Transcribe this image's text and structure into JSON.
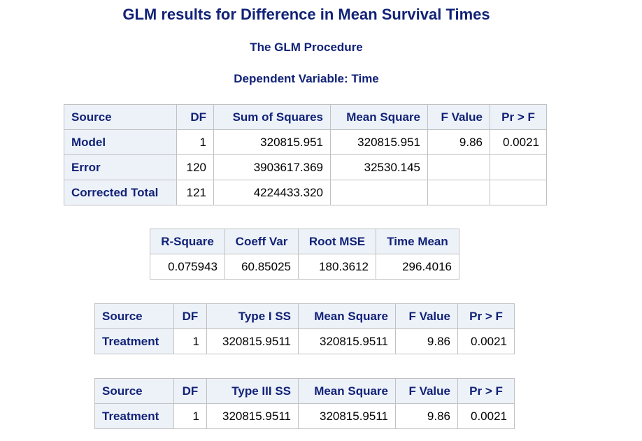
{
  "title": "GLM results for Difference in Mean Survival Times",
  "procedure": "The GLM Procedure",
  "dependent": "Dependent Variable: Time",
  "anova": {
    "headers": [
      "Source",
      "DF",
      "Sum of Squares",
      "Mean Square",
      "F Value",
      "Pr > F"
    ],
    "rows": [
      {
        "source": "Model",
        "df": "1",
        "ss": "320815.951",
        "ms": "320815.951",
        "f": "9.86",
        "p": "0.0021"
      },
      {
        "source": "Error",
        "df": "120",
        "ss": "3903617.369",
        "ms": "32530.145",
        "f": "",
        "p": ""
      },
      {
        "source": "Corrected Total",
        "df": "121",
        "ss": "4224433.320",
        "ms": "",
        "f": "",
        "p": ""
      }
    ]
  },
  "fit": {
    "headers": [
      "R-Square",
      "Coeff Var",
      "Root MSE",
      "Time Mean"
    ],
    "values": [
      "0.075943",
      "60.85025",
      "180.3612",
      "296.4016"
    ]
  },
  "type1": {
    "headers": [
      "Source",
      "DF",
      "Type I SS",
      "Mean Square",
      "F Value",
      "Pr > F"
    ],
    "row": {
      "source": "Treatment",
      "df": "1",
      "ss": "320815.9511",
      "ms": "320815.9511",
      "f": "9.86",
      "p": "0.0021"
    }
  },
  "type3": {
    "headers": [
      "Source",
      "DF",
      "Type III SS",
      "Mean Square",
      "F Value",
      "Pr > F"
    ],
    "row": {
      "source": "Treatment",
      "df": "1",
      "ss": "320815.9511",
      "ms": "320815.9511",
      "f": "9.86",
      "p": "0.0021"
    }
  }
}
